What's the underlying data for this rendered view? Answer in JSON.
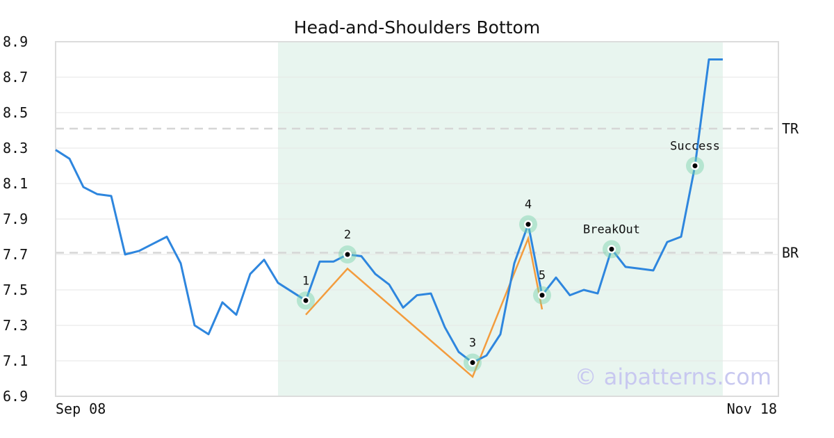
{
  "chart_data": {
    "type": "line",
    "title": "Head-and-Shoulders Bottom",
    "xlabel": "",
    "ylabel": "",
    "ylim": [
      6.9,
      8.9
    ],
    "y_ticks": [
      "6.9",
      "7.1",
      "7.3",
      "7.5",
      "7.7",
      "7.9",
      "8.1",
      "8.3",
      "8.5",
      "8.7",
      "8.9"
    ],
    "x_tick_labels": [
      "Sep 08",
      "Nov 18"
    ],
    "grid": "horizontal",
    "series": [
      {
        "color": "#2e86de",
        "values": [
          8.29,
          8.24,
          8.08,
          8.04,
          8.03,
          7.7,
          7.72,
          7.76,
          7.8,
          7.65,
          7.3,
          7.25,
          7.43,
          7.36,
          7.59,
          7.67,
          7.54,
          7.49,
          7.44,
          7.66,
          7.66,
          7.7,
          7.69,
          7.59,
          7.53,
          7.4,
          7.47,
          7.48,
          7.29,
          7.15,
          7.09,
          7.13,
          7.25,
          7.65,
          7.87,
          7.47,
          7.57,
          7.47,
          7.5,
          7.48,
          7.73,
          7.63,
          7.62,
          7.61,
          7.77,
          7.8,
          8.2,
          8.8,
          8.8
        ]
      }
    ],
    "pattern_line": {
      "color": "#f39c3d",
      "points": [
        [
          18,
          7.36
        ],
        [
          21,
          7.62
        ],
        [
          30,
          7.01
        ],
        [
          34,
          7.79
        ],
        [
          35,
          7.39
        ]
      ]
    },
    "pattern_region": {
      "x_start": 16,
      "x_end": 48,
      "color": "#e8f5ef"
    },
    "reference_lines": [
      {
        "label": "TR",
        "value": 8.41
      },
      {
        "label": "BR",
        "value": 7.71
      }
    ],
    "key_points": [
      {
        "label": "1",
        "x": 18,
        "y": 7.44
      },
      {
        "label": "2",
        "x": 21,
        "y": 7.7
      },
      {
        "label": "3",
        "x": 30,
        "y": 7.09
      },
      {
        "label": "4",
        "x": 34,
        "y": 7.87
      },
      {
        "label": "5",
        "x": 35,
        "y": 7.47
      },
      {
        "label": "BreakOut",
        "x": 40,
        "y": 7.73
      },
      {
        "label": "Success",
        "x": 46,
        "y": 8.2
      }
    ],
    "watermark": "© aipatterns.com"
  }
}
